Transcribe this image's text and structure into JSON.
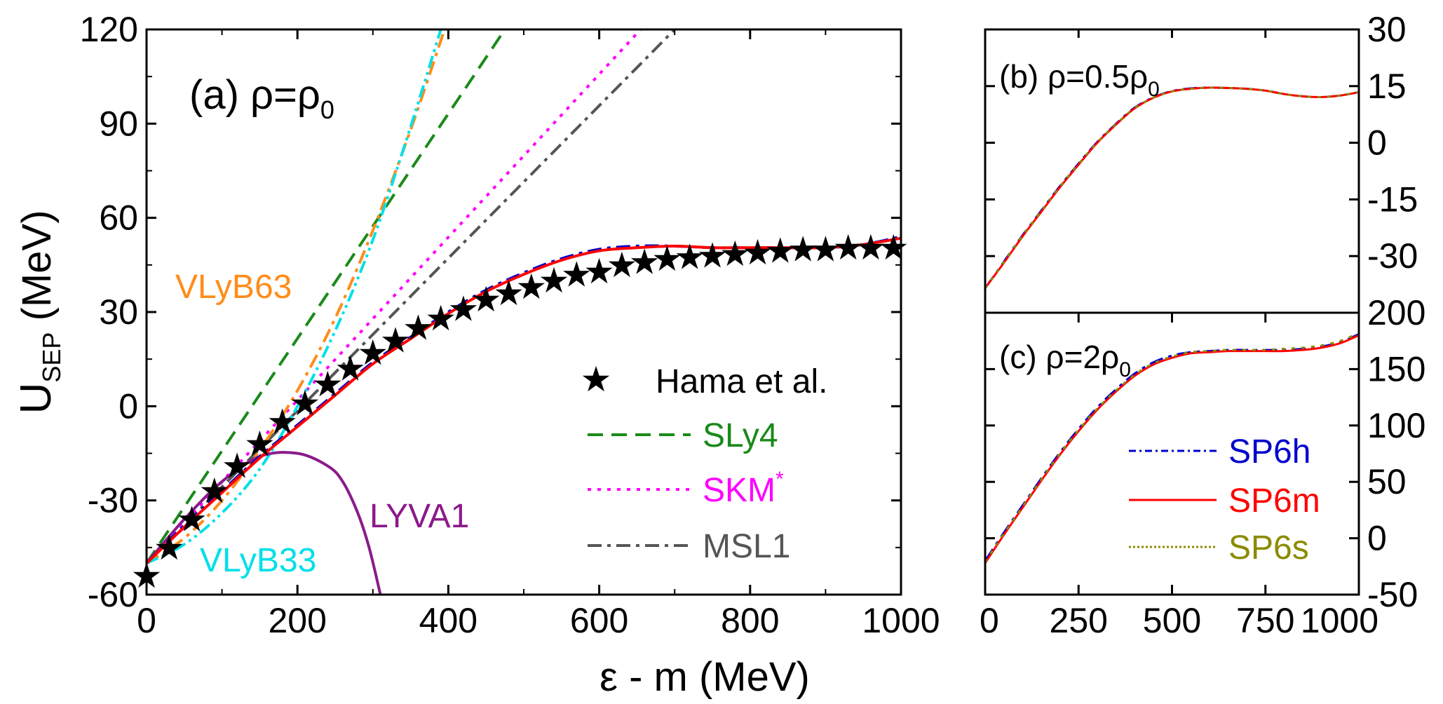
{
  "chart_data": [
    {
      "panel": "a",
      "type": "line",
      "title_prefix": "(a) ",
      "title_rho": "ρ=ρ",
      "title_sub": "0",
      "xlabel": "ε - m (MeV)",
      "ylabel_main": "U",
      "ylabel_sub": "SEP",
      "ylabel_rest": " (MeV)",
      "xlim": [
        0,
        1000
      ],
      "ylim": [
        -60,
        120
      ],
      "xticks": [
        0,
        200,
        400,
        600,
        800,
        1000
      ],
      "yticks": [
        -60,
        -30,
        0,
        30,
        60,
        90,
        120
      ],
      "legend_position": "bottom-right",
      "series": [
        {
          "key": "hama",
          "name": "Hama et al.",
          "style": "stars",
          "color": "#000000",
          "x": [
            0,
            30,
            60,
            90,
            120,
            150,
            180,
            210,
            240,
            270,
            300,
            330,
            360,
            390,
            420,
            450,
            480,
            510,
            540,
            570,
            600,
            630,
            660,
            690,
            720,
            750,
            780,
            810,
            840,
            870,
            900,
            930,
            960,
            990
          ],
          "y": [
            -54,
            -45,
            -36,
            -27,
            -19,
            -12,
            -5,
            1,
            7,
            12,
            17,
            21,
            25,
            28,
            31,
            34,
            36,
            38,
            40,
            42,
            43,
            45,
            46,
            47,
            47.5,
            48,
            48.5,
            49,
            49.5,
            50,
            50,
            50.5,
            50.5,
            50.5
          ]
        },
        {
          "key": "sly4",
          "name": "SLy4",
          "style": "dashed",
          "color": "#1a8a1a",
          "x": [
            0,
            475
          ],
          "y": [
            -50,
            120
          ]
        },
        {
          "key": "skm",
          "name": "SKM",
          "name_sup": "*",
          "style": "dotted",
          "color": "#ff00ff",
          "x": [
            0,
            655
          ],
          "y": [
            -50,
            120
          ]
        },
        {
          "key": "msl1",
          "name": "MSL1",
          "style": "dashdot",
          "color": "#555555",
          "x": [
            0,
            700
          ],
          "y": [
            -50,
            120
          ]
        },
        {
          "key": "vlyb63",
          "name": "VLyB63",
          "style": "dashdot",
          "color": "#ff8c1a",
          "x": [
            0,
            50,
            100,
            150,
            200,
            250,
            300,
            350,
            395
          ],
          "y": [
            -50,
            -42,
            -30,
            -14,
            5,
            28,
            56,
            88,
            120
          ]
        },
        {
          "key": "vlyb33",
          "name": "VLyB33",
          "style": "dashdotdot",
          "color": "#00e0e8",
          "x": [
            0,
            50,
            100,
            150,
            200,
            250,
            300,
            350,
            390
          ],
          "y": [
            -50,
            -44,
            -34,
            -20,
            0,
            24,
            53,
            89,
            120
          ]
        },
        {
          "key": "lyva1",
          "name": "LYVA1",
          "style": "solid",
          "color": "#8b1a8b",
          "x": [
            0,
            50,
            100,
            150,
            200,
            240,
            260,
            280,
            295,
            310
          ],
          "y": [
            -50,
            -36,
            -24,
            -16,
            -15,
            -19,
            -24,
            -34,
            -45,
            -60
          ]
        },
        {
          "key": "sp6h_a",
          "name": "",
          "style": "dashdot",
          "color": "#0000cc",
          "x": [
            0,
            50,
            100,
            150,
            200,
            250,
            300,
            350,
            400,
            450,
            500,
            550,
            600,
            650,
            700,
            750,
            800,
            850,
            900,
            950,
            1000
          ],
          "y": [
            -50,
            -38,
            -27,
            -16,
            -6,
            4,
            14,
            22,
            30,
            37,
            42.5,
            47,
            50,
            51,
            51,
            50.5,
            50.5,
            50.5,
            50.5,
            51.5,
            54
          ]
        },
        {
          "key": "sp6m_a",
          "name": "",
          "style": "solid",
          "color": "#ff0000",
          "x": [
            0,
            50,
            100,
            150,
            200,
            250,
            300,
            350,
            400,
            450,
            500,
            550,
            600,
            650,
            700,
            750,
            800,
            850,
            900,
            950,
            1000
          ],
          "y": [
            -50,
            -38.5,
            -27.5,
            -16.5,
            -6.5,
            3.5,
            13.5,
            21.5,
            29.5,
            36.5,
            42,
            46.5,
            49.5,
            50.5,
            51,
            50.5,
            50.5,
            50.5,
            50.5,
            51.5,
            53.5
          ]
        }
      ],
      "annotations": [
        "VLyB63",
        "VLyB33",
        "LYVA1"
      ]
    },
    {
      "panel": "b",
      "type": "line",
      "title_prefix": "(b) ",
      "title_rho": "ρ=0.5ρ",
      "title_sub": "0",
      "xlim": [
        0,
        1000
      ],
      "ylim": [
        -45,
        30
      ],
      "yticks": [
        -30,
        -15,
        0,
        15,
        30
      ],
      "y_axis_side": "right",
      "series": [
        {
          "key": "sp6h_b",
          "style": "dashdot",
          "color": "#0000cc",
          "x": [
            0,
            50,
            100,
            150,
            200,
            250,
            300,
            350,
            400,
            450,
            500,
            550,
            600,
            650,
            700,
            750,
            800,
            850,
            900,
            950,
            1000
          ],
          "y": [
            -38.5,
            -31.5,
            -24.5,
            -18,
            -11.5,
            -5.5,
            0.2,
            5,
            9.3,
            12,
            13.7,
            14.4,
            14.6,
            14.5,
            14.3,
            13.8,
            12.9,
            12.3,
            12.1,
            12.5,
            13.4
          ]
        },
        {
          "key": "sp6m_b",
          "style": "solid",
          "color": "#ff0000",
          "x": [
            0,
            50,
            100,
            150,
            200,
            250,
            300,
            350,
            400,
            450,
            500,
            550,
            600,
            650,
            700,
            750,
            800,
            850,
            900,
            950,
            1000
          ],
          "y": [
            -38.5,
            -31.8,
            -24.8,
            -18.3,
            -11.8,
            -5.8,
            0,
            4.8,
            9.1,
            11.9,
            13.6,
            14.3,
            14.6,
            14.5,
            14.3,
            13.8,
            12.9,
            12.3,
            12.1,
            12.5,
            13.4
          ]
        },
        {
          "key": "sp6s_b",
          "style": "dotted",
          "color": "#8b8b00",
          "x": [
            0,
            50,
            100,
            150,
            200,
            250,
            300,
            350,
            400,
            450,
            500,
            550,
            600,
            650,
            700,
            750,
            800,
            850,
            900,
            950,
            1000
          ],
          "y": [
            -38.5,
            -31.6,
            -24.6,
            -18.1,
            -11.6,
            -5.6,
            0.1,
            4.9,
            9.2,
            11.9,
            13.6,
            14.3,
            14.6,
            14.5,
            14.3,
            13.8,
            12.9,
            12.3,
            12.1,
            12.5,
            13.4
          ]
        }
      ]
    },
    {
      "panel": "c",
      "type": "line",
      "title_prefix": "(c) ",
      "title_rho": "ρ=2ρ",
      "title_sub": "0",
      "xlim": [
        0,
        1000
      ],
      "ylim": [
        -50,
        200
      ],
      "xticks": [
        0,
        250,
        500,
        750,
        1000
      ],
      "yticks": [
        -50,
        0,
        50,
        100,
        150,
        200
      ],
      "y_axis_side": "right",
      "legend_position": "bottom-right",
      "series": [
        {
          "key": "sp6h",
          "name": "SP6h",
          "style": "dashdot",
          "color": "#0000cc",
          "x": [
            0,
            50,
            100,
            150,
            200,
            250,
            300,
            350,
            400,
            450,
            500,
            550,
            600,
            650,
            700,
            750,
            800,
            850,
            900,
            950,
            1000
          ],
          "y": [
            -20,
            5,
            29,
            53,
            76,
            97,
            116,
            132,
            146,
            156,
            162,
            165,
            166,
            167,
            167,
            167,
            167,
            168,
            170,
            174,
            181
          ]
        },
        {
          "key": "sp6m",
          "name": "SP6m",
          "style": "solid",
          "color": "#ff0000",
          "x": [
            0,
            50,
            100,
            150,
            200,
            250,
            300,
            350,
            400,
            450,
            500,
            550,
            600,
            650,
            700,
            750,
            800,
            850,
            900,
            950,
            1000
          ],
          "y": [
            -22,
            3,
            27,
            51,
            74,
            95,
            114,
            130,
            144,
            154,
            160,
            164,
            165,
            166,
            166,
            166,
            166,
            167,
            169,
            173,
            180
          ]
        },
        {
          "key": "sp6s",
          "name": "SP6s",
          "style": "dotted",
          "color": "#8b8b00",
          "x": [
            0,
            50,
            100,
            150,
            200,
            250,
            300,
            350,
            400,
            450,
            500,
            550,
            600,
            650,
            700,
            750,
            800,
            850,
            900,
            950,
            1000
          ],
          "y": [
            -21,
            4,
            28,
            52,
            75,
            96,
            115,
            131,
            145,
            155,
            161,
            165,
            166,
            167,
            167,
            167,
            168,
            169,
            171,
            175,
            182
          ]
        }
      ]
    }
  ]
}
